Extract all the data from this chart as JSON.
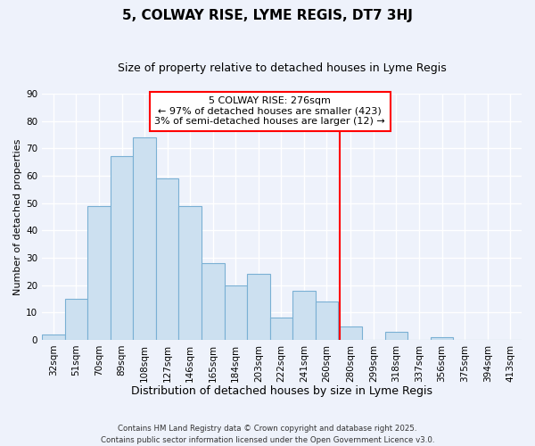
{
  "title": "5, COLWAY RISE, LYME REGIS, DT7 3HJ",
  "subtitle": "Size of property relative to detached houses in Lyme Regis",
  "xlabel": "Distribution of detached houses by size in Lyme Regis",
  "ylabel": "Number of detached properties",
  "bar_values": [
    2,
    15,
    49,
    67,
    74,
    59,
    49,
    28,
    20,
    24,
    8,
    18,
    14,
    5,
    0,
    3,
    0,
    1,
    0,
    0,
    0
  ],
  "bar_labels": [
    "32sqm",
    "51sqm",
    "70sqm",
    "89sqm",
    "108sqm",
    "127sqm",
    "146sqm",
    "165sqm",
    "184sqm",
    "203sqm",
    "222sqm",
    "241sqm",
    "260sqm",
    "280sqm",
    "299sqm",
    "318sqm",
    "337sqm",
    "356sqm",
    "375sqm",
    "394sqm",
    "413sqm"
  ],
  "bin_edges": [
    32,
    51,
    70,
    89,
    108,
    127,
    146,
    165,
    184,
    203,
    222,
    241,
    260,
    280,
    299,
    318,
    337,
    356,
    375,
    394,
    413
  ],
  "bar_color": "#cce0f0",
  "bar_edge_color": "#7ab0d4",
  "vline_x": 280,
  "vline_color": "red",
  "annotation_title": "5 COLWAY RISE: 276sqm",
  "annotation_line1": "← 97% of detached houses are smaller (423)",
  "annotation_line2": "3% of semi-detached houses are larger (12) →",
  "annotation_box_color": "#ffffff",
  "annotation_box_edge_color": "red",
  "ylim": [
    0,
    90
  ],
  "yticks": [
    0,
    10,
    20,
    30,
    40,
    50,
    60,
    70,
    80,
    90
  ],
  "background_color": "#eef2fb",
  "grid_color": "#ffffff",
  "footer_line1": "Contains HM Land Registry data © Crown copyright and database right 2025.",
  "footer_line2": "Contains public sector information licensed under the Open Government Licence v3.0.",
  "title_fontsize": 11,
  "subtitle_fontsize": 9,
  "xlabel_fontsize": 9,
  "ylabel_fontsize": 8,
  "tick_fontsize": 7.5,
  "annot_fontsize": 8
}
